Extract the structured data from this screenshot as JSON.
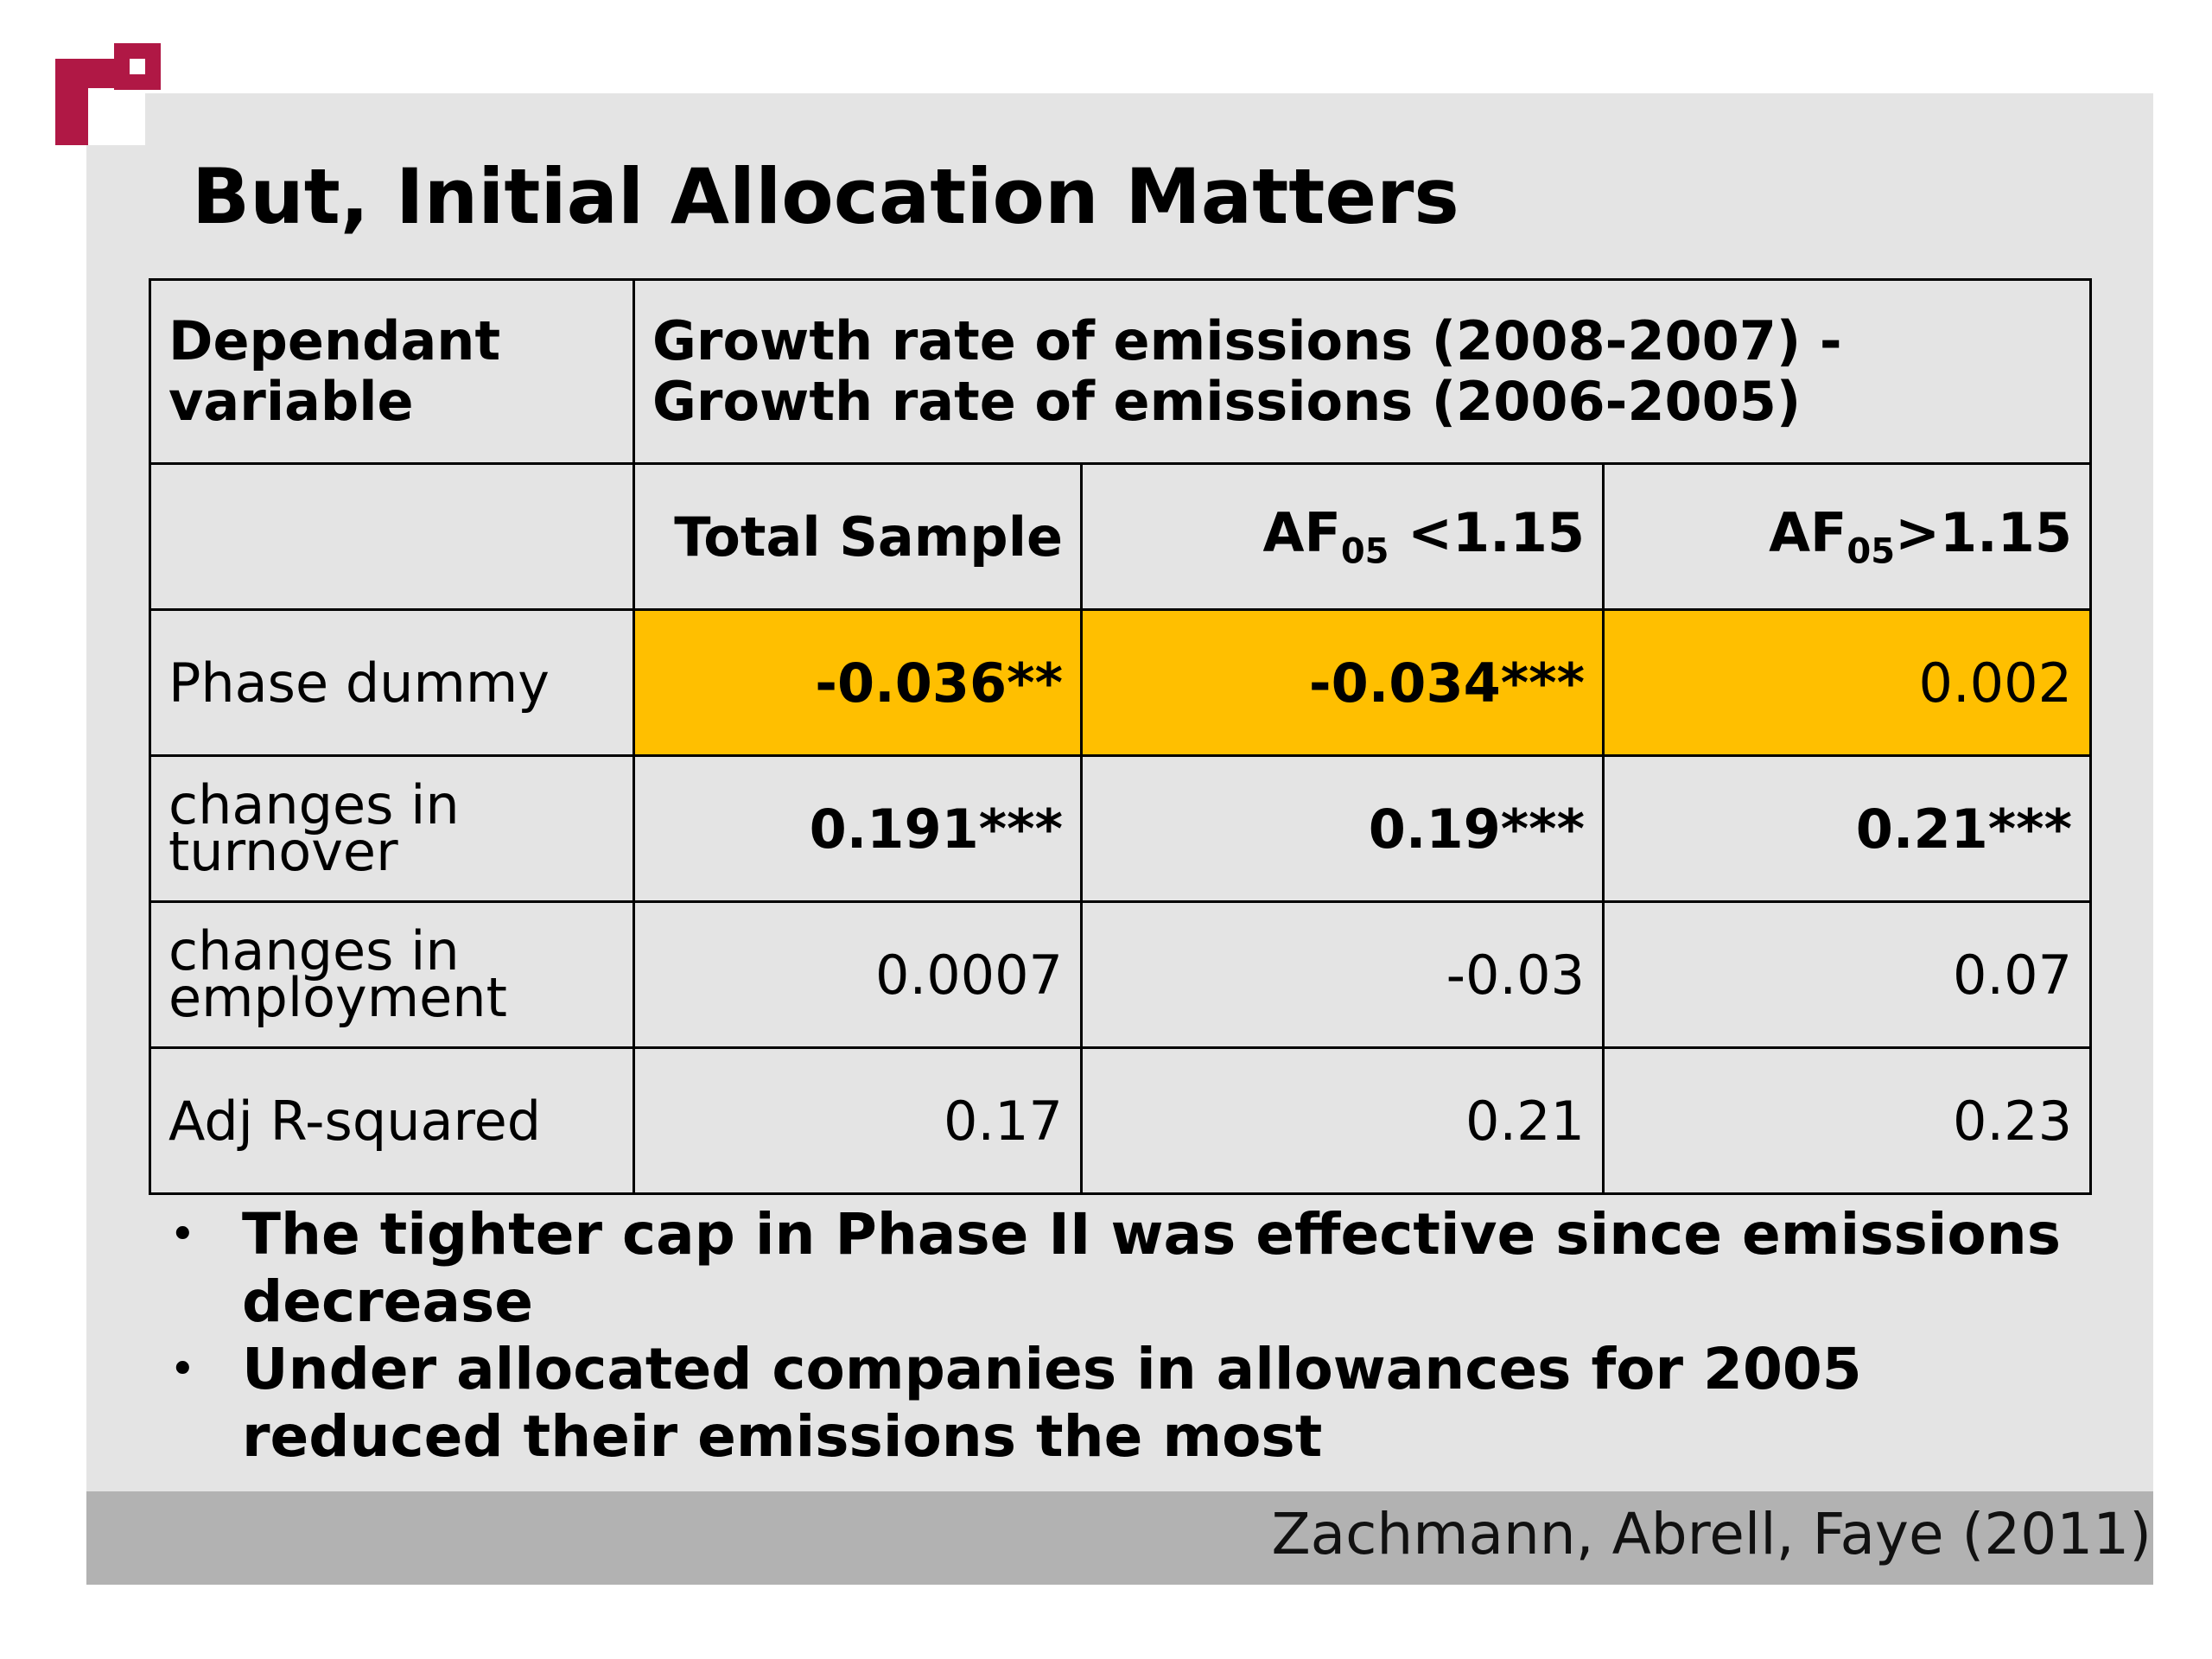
{
  "slide": {
    "title": "But, Initial Allocation Matters",
    "citation": "Zachmann, Abrell, Faye (2011)"
  },
  "table": {
    "header": {
      "dependent_label": "Dependant variable",
      "dependent_value_line1": "Growth rate of emissions (2008-2007) -",
      "dependent_value_line2": "Growth rate of emissions (2006-2005)"
    },
    "columns": [
      {
        "label": "Total Sample"
      },
      {
        "prefix": "AF",
        "sub": "05",
        "suffix": " <1.15"
      },
      {
        "prefix": "AF",
        "sub": "05",
        "suffix": ">1.15"
      }
    ],
    "rows": [
      {
        "label": "Phase dummy",
        "values": [
          "-0.036**",
          "-0.034***",
          "0.002"
        ]
      },
      {
        "label": "changes in turnover",
        "values": [
          "0.191***",
          "0.19***",
          "0.21***"
        ]
      },
      {
        "label": "changes in employment",
        "values": [
          "0.0007",
          "-0.03",
          "0.07"
        ]
      },
      {
        "label": "Adj R-squared",
        "values": [
          "0.17",
          "0.21",
          "0.23"
        ]
      }
    ],
    "highlight_color": "#ffbf00"
  },
  "bullets": [
    "The tighter cap in Phase II was effective since emissions decrease",
    "Under allocated companies in allowances for 2005 reduced their emissions the most"
  ]
}
